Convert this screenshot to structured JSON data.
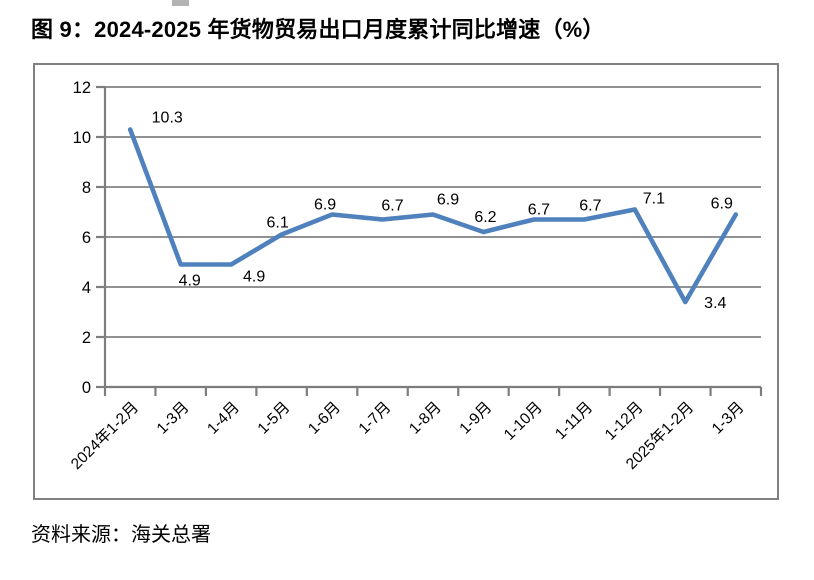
{
  "page": {
    "title": "图 9：2024-2025 年货物贸易出口月度累计同比增速（%）",
    "source": "资料来源：海关总署"
  },
  "chart_data": {
    "type": "line",
    "title": "2024-2025 年货物贸易出口月度累计同比增速（%）",
    "categories": [
      "2024年1-2月",
      "1-3月",
      "1-4月",
      "1-5月",
      "1-6月",
      "1-7月",
      "1-8月",
      "1-9月",
      "1-10月",
      "1-11月",
      "1-12月",
      "2025年1-2月",
      "1-3月"
    ],
    "values": [
      10.3,
      4.9,
      4.9,
      6.1,
      6.9,
      6.7,
      6.9,
      6.2,
      6.7,
      6.7,
      7.1,
      3.4,
      6.9
    ],
    "xlabel": "",
    "ylabel": "",
    "ylim": [
      0,
      12
    ],
    "ytick_step": 2,
    "yticks": [
      0,
      2,
      4,
      6,
      8,
      10,
      12
    ],
    "grid": true,
    "legend": "none",
    "data_labels_shown": true,
    "x_labels_rotated_deg": 45,
    "line_color": "#4f81bd",
    "grid_color": "#919191",
    "axis_color": "#7d7d7d",
    "border_color": "#808080",
    "label_color": "#000000"
  }
}
